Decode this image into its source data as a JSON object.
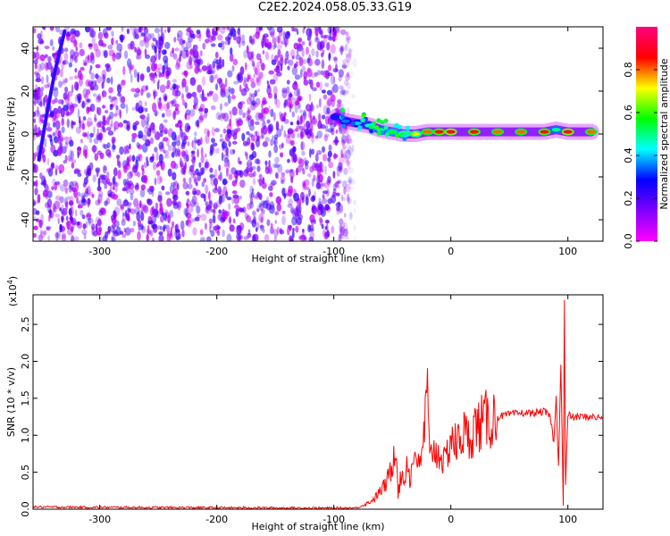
{
  "figure": {
    "title": "C2E2.2024.058.05.33.G19"
  },
  "chart_data": [
    {
      "type": "heatmap",
      "xlabel": "Height of straight line (km)",
      "ylabel": "Frequency (Hz)",
      "xlim": [
        -357,
        130
      ],
      "ylim": [
        -50,
        50
      ],
      "x_ticks": [
        -300,
        -200,
        -100,
        0,
        100
      ],
      "y_ticks": [
        -40,
        -20,
        0,
        20,
        40
      ],
      "colorbar": {
        "label": "Normalized spectral amplitude",
        "range": [
          0.0,
          1.0
        ],
        "ticks": [
          0.0,
          0.2,
          0.4,
          0.6,
          0.8
        ],
        "colormap": [
          "#ff00ff",
          "#8000ff",
          "#0000ff",
          "#00ffff",
          "#00ff00",
          "#ffff00",
          "#ff0000",
          "#ff0080"
        ]
      },
      "noise_region": {
        "x": [
          -357,
          -82
        ],
        "y": [
          -50,
          50
        ],
        "amplitude": [
          0.05,
          0.25
        ]
      },
      "signal_track": [
        {
          "x": -98,
          "y": 8,
          "amp": 0.3
        },
        {
          "x": -90,
          "y": 6,
          "amp": 0.35
        },
        {
          "x": -80,
          "y": 5,
          "amp": 0.4
        },
        {
          "x": -70,
          "y": 4,
          "amp": 0.45
        },
        {
          "x": -60,
          "y": 2,
          "amp": 0.5
        },
        {
          "x": -50,
          "y": 1,
          "amp": 0.55
        },
        {
          "x": -40,
          "y": 0,
          "amp": 0.6
        },
        {
          "x": -30,
          "y": 0,
          "amp": 0.7
        },
        {
          "x": -20,
          "y": 1,
          "amp": 0.8
        },
        {
          "x": -10,
          "y": 1,
          "amp": 0.85
        },
        {
          "x": 0,
          "y": 1,
          "amp": 0.9
        },
        {
          "x": 20,
          "y": 1,
          "amp": 0.85
        },
        {
          "x": 40,
          "y": 1,
          "amp": 0.8
        },
        {
          "x": 60,
          "y": 1,
          "amp": 0.8
        },
        {
          "x": 80,
          "y": 1,
          "amp": 0.85
        },
        {
          "x": 90,
          "y": 2,
          "amp": 0.5
        },
        {
          "x": 100,
          "y": 1,
          "amp": 0.9
        },
        {
          "x": 120,
          "y": 1,
          "amp": 0.8
        }
      ],
      "transient_track": [
        {
          "x": -352,
          "y": -12
        },
        {
          "x": -345,
          "y": 10
        },
        {
          "x": -338,
          "y": 30
        },
        {
          "x": -330,
          "y": 48
        }
      ]
    },
    {
      "type": "line",
      "xlabel": "Height of straight line (km)",
      "ylabel": "SNR (10 * v/v)",
      "y_multiplier": "(x10",
      "y_multiplier_exp": "4",
      "y_multiplier_close": ")",
      "xlim": [
        -357,
        130
      ],
      "ylim": [
        0,
        29000
      ],
      "x_ticks": [
        -300,
        -200,
        -100,
        0,
        100
      ],
      "y_ticks": [
        0,
        5000,
        10000,
        15000,
        20000,
        25000
      ],
      "y_tick_labels": [
        "0.0",
        "0.5",
        "1.0",
        "1.5",
        "2.0",
        "2.5"
      ],
      "series": [
        {
          "color": "#ff0000",
          "x": [
            -357,
            -300,
            -200,
            -100,
            -80,
            -70,
            -65,
            -60,
            -55,
            -50,
            -47,
            -45,
            -42,
            -40,
            -37,
            -35,
            -30,
            -27,
            -25,
            -20,
            -18,
            -15,
            -12,
            -10,
            -5,
            0,
            5,
            10,
            15,
            20,
            25,
            30,
            40,
            50,
            60,
            70,
            80,
            85,
            88,
            90,
            92,
            94,
            96,
            97,
            98,
            100,
            105,
            110,
            120,
            130
          ],
          "y": [
            300,
            250,
            200,
            150,
            180,
            900,
            1500,
            2500,
            3500,
            6000,
            10000,
            2000,
            5000,
            3500,
            7000,
            4000,
            8500,
            5000,
            7000,
            15500,
            6000,
            9000,
            7000,
            8000,
            6000,
            10000,
            8500,
            10500,
            9500,
            11000,
            11500,
            12000,
            12500,
            12800,
            13000,
            13000,
            13200,
            12500,
            9000,
            15000,
            6000,
            20000,
            500,
            28000,
            3000,
            12800,
            12400,
            12500,
            12500,
            12300
          ]
        }
      ]
    }
  ]
}
